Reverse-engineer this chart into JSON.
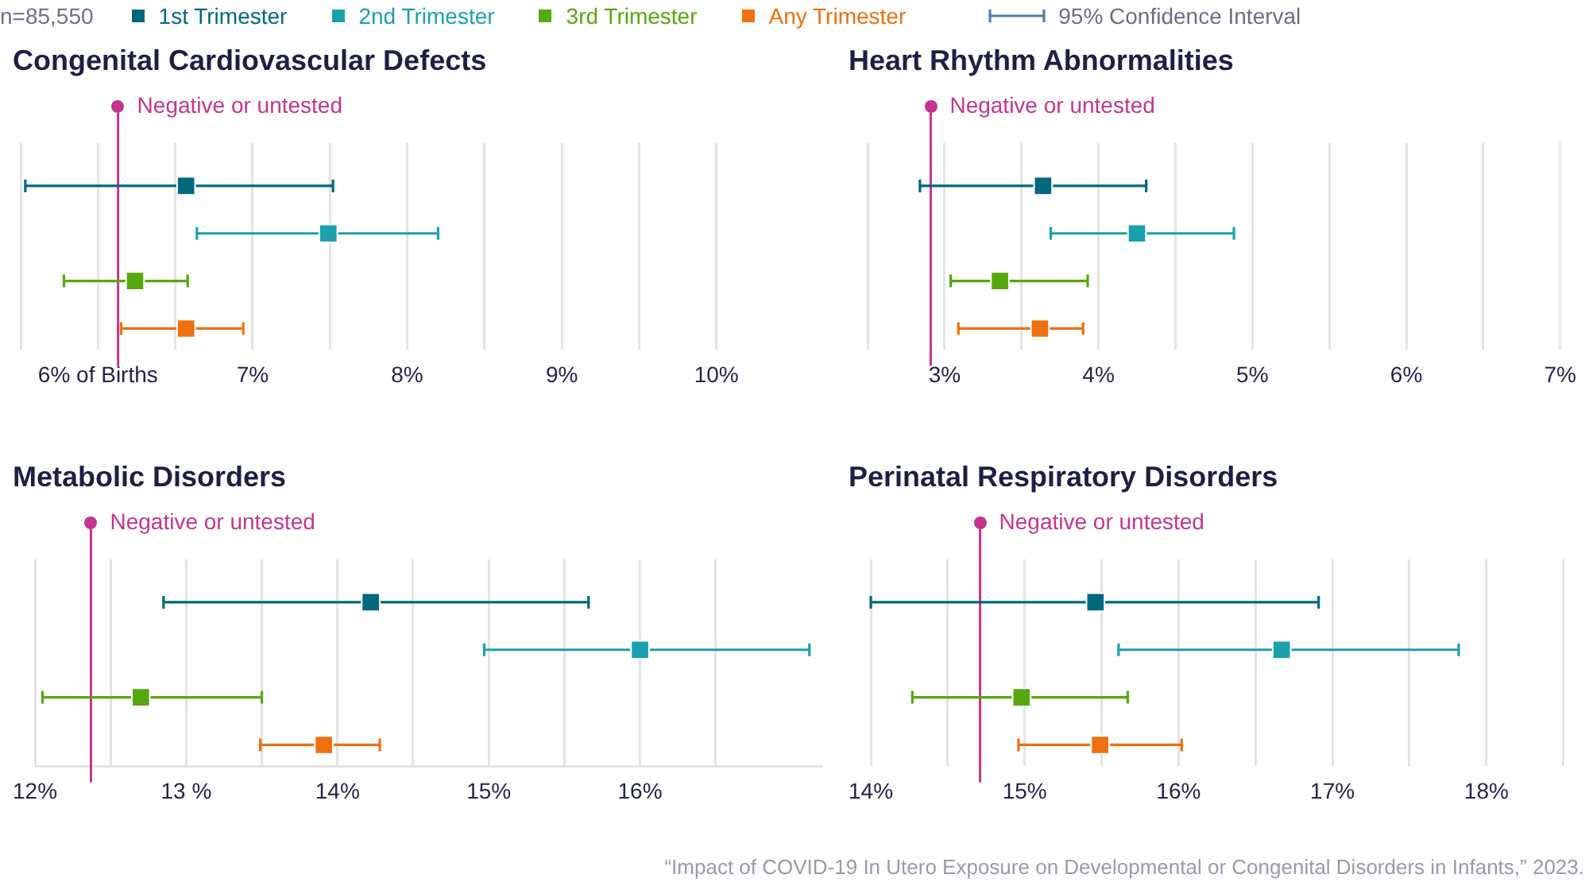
{
  "chart_data": [
    {
      "type": "scatter",
      "orientation": "horizontal",
      "title": "Congenital Cardiovascular Defects",
      "legend": "top",
      "legend_title": "n=85,550",
      "annotations": [
        "95% Confidence Interval"
      ],
      "categories": [
        null,
        null,
        null,
        null
      ],
      "series": [
        {
          "name": "1st Trimester",
          "color": "#00687d",
          "values": [
            6.57,
            null,
            null,
            null
          ],
          "errors": [
            [
              5.53,
              7.52
            ],
            null,
            null,
            null
          ]
        },
        {
          "name": "2nd Trimester",
          "color": "#1ba0ae",
          "values": [
            null,
            7.49,
            null,
            null
          ],
          "errors": [
            null,
            [
              6.64,
              8.2
            ],
            null,
            null
          ]
        },
        {
          "name": "3rd Trimester",
          "color": "#57a70f",
          "values": [
            null,
            null,
            6.24,
            null
          ],
          "errors": [
            null,
            null,
            [
              5.78,
              6.58
            ],
            null
          ]
        },
        {
          "name": "Any Trimester",
          "color": "#ee7010",
          "values": [
            null,
            null,
            null,
            6.57
          ],
          "errors": [
            null,
            null,
            null,
            [
              6.15,
              6.94
            ]
          ]
        }
      ],
      "xlim": [
        5.5,
        10
      ],
      "xticks": [
        {
          "value": 5.5,
          "label": null
        },
        {
          "value": 6,
          "label": "6% of Births"
        },
        {
          "value": 6.5,
          "label": null
        },
        {
          "value": 7,
          "label": "7%"
        },
        {
          "value": 7.5,
          "label": null
        },
        {
          "value": 8,
          "label": "8%"
        },
        {
          "value": 8.5,
          "label": null
        },
        {
          "value": 9,
          "label": "9%"
        },
        {
          "value": 9.5,
          "label": null
        },
        {
          "value": 10,
          "label": "10%"
        }
      ],
      "ref_lines": [
        {
          "axis": "x",
          "value": 6.13,
          "label": "Negative or untested",
          "color": "#c5348e"
        }
      ],
      "grid": "x",
      "marker": "square",
      "tick_labels": "x"
    },
    {
      "type": "scatter",
      "orientation": "horizontal",
      "title": "Heart Rhythm Abnormalities",
      "categories": [
        null,
        null,
        null,
        null
      ],
      "series": [
        {
          "color": "#00687d",
          "values": [
            3.64,
            null,
            null,
            null
          ],
          "errors": [
            [
              2.84,
              4.31
            ],
            null,
            null,
            null
          ]
        },
        {
          "color": "#1ba0ae",
          "values": [
            null,
            4.25,
            null,
            null
          ],
          "errors": [
            null,
            [
              3.69,
              4.88
            ],
            null,
            null
          ]
        },
        {
          "color": "#57a70f",
          "values": [
            null,
            null,
            3.36,
            null
          ],
          "errors": [
            null,
            null,
            [
              3.04,
              3.93
            ],
            null
          ]
        },
        {
          "color": "#ee7010",
          "values": [
            null,
            null,
            null,
            3.62
          ],
          "errors": [
            null,
            null,
            null,
            [
              3.09,
              3.9
            ]
          ]
        }
      ],
      "xlim": [
        2.5,
        7
      ],
      "xticks": [
        {
          "value": 2.5,
          "label": null
        },
        {
          "value": 3,
          "label": "3%"
        },
        {
          "value": 3.5,
          "label": null
        },
        {
          "value": 4,
          "label": "4%"
        },
        {
          "value": 4.5,
          "label": null
        },
        {
          "value": 5,
          "label": "5%"
        },
        {
          "value": 5.5,
          "label": null
        },
        {
          "value": 6,
          "label": "6%"
        },
        {
          "value": 6.5,
          "label": null
        },
        {
          "value": 7,
          "label": "7%"
        }
      ],
      "ref_lines": [
        {
          "axis": "x",
          "value": 2.91,
          "label": "Negative or untested",
          "color": "#c5348e"
        }
      ],
      "grid": "x",
      "marker": "square",
      "tick_labels": "x"
    },
    {
      "type": "scatter",
      "orientation": "horizontal",
      "title": "Metabolic Disorders",
      "categories": [
        null,
        null,
        null,
        null
      ],
      "series": [
        {
          "color": "#00687d",
          "values": [
            14.22,
            null,
            null,
            null
          ],
          "errors": [
            [
              12.85,
              15.66
            ],
            null,
            null,
            null
          ]
        },
        {
          "color": "#1ba0ae",
          "values": [
            null,
            16.0,
            null,
            null
          ],
          "errors": [
            null,
            [
              14.97,
              17.12
            ],
            null,
            null
          ]
        },
        {
          "color": "#57a70f",
          "values": [
            null,
            null,
            12.7,
            null
          ],
          "errors": [
            null,
            null,
            [
              12.05,
              13.5
            ],
            null
          ]
        },
        {
          "color": "#ee7010",
          "values": [
            null,
            null,
            null,
            13.91
          ],
          "errors": [
            null,
            null,
            null,
            [
              13.49,
              14.28
            ]
          ]
        }
      ],
      "xlim": [
        12,
        17.2
      ],
      "xticks": [
        {
          "value": 12,
          "label": "12%"
        },
        {
          "value": 12.5,
          "label": null
        },
        {
          "value": 13,
          "label": "13 %"
        },
        {
          "value": 13.5,
          "label": null
        },
        {
          "value": 14,
          "label": "14%"
        },
        {
          "value": 14.5,
          "label": null
        },
        {
          "value": 15,
          "label": "15%"
        },
        {
          "value": 15.5,
          "label": null
        },
        {
          "value": 16,
          "label": "16%"
        },
        {
          "value": 16.5,
          "label": null
        }
      ],
      "ref_lines": [
        {
          "axis": "x",
          "value": 12.37,
          "label": "Negative or untested",
          "color": "#c5348e"
        }
      ],
      "grid": "x",
      "marker": "square",
      "tick_labels": "x"
    },
    {
      "type": "scatter",
      "orientation": "horizontal",
      "title": "Perinatal Respiratory Disorders",
      "annotations": [
        "“Impact of COVID-19 In Utero Exposure on Developmental or Congenital Disorders in Infants,” 2023."
      ],
      "categories": [
        null,
        null,
        null,
        null
      ],
      "series": [
        {
          "color": "#00687d",
          "values": [
            15.46,
            null,
            null,
            null
          ],
          "errors": [
            [
              14.0,
              16.91
            ],
            null,
            null,
            null
          ]
        },
        {
          "color": "#1ba0ae",
          "values": [
            null,
            16.67,
            null,
            null
          ],
          "errors": [
            null,
            [
              15.61,
              17.82
            ],
            null,
            null
          ]
        },
        {
          "color": "#57a70f",
          "values": [
            null,
            null,
            14.98,
            null
          ],
          "errors": [
            null,
            null,
            [
              14.27,
              15.67
            ],
            null
          ]
        },
        {
          "color": "#ee7010",
          "values": [
            null,
            null,
            null,
            15.49
          ],
          "errors": [
            null,
            null,
            null,
            [
              14.96,
              16.02
            ]
          ]
        }
      ],
      "xlim": [
        14,
        18.5
      ],
      "xticks": [
        {
          "value": 14,
          "label": "14%"
        },
        {
          "value": 14.5,
          "label": null
        },
        {
          "value": 15,
          "label": "15%"
        },
        {
          "value": 15.5,
          "label": null
        },
        {
          "value": 16,
          "label": "16%"
        },
        {
          "value": 16.5,
          "label": null
        },
        {
          "value": 17,
          "label": "17%"
        },
        {
          "value": 17.5,
          "label": null
        },
        {
          "value": 18,
          "label": "18%"
        },
        {
          "value": 18.5,
          "label": null
        }
      ],
      "ref_lines": [
        {
          "axis": "x",
          "value": 14.71,
          "label": "Negative or untested",
          "color": "#c5348e"
        }
      ],
      "grid": "x",
      "marker": "square",
      "tick_labels": "x"
    }
  ]
}
